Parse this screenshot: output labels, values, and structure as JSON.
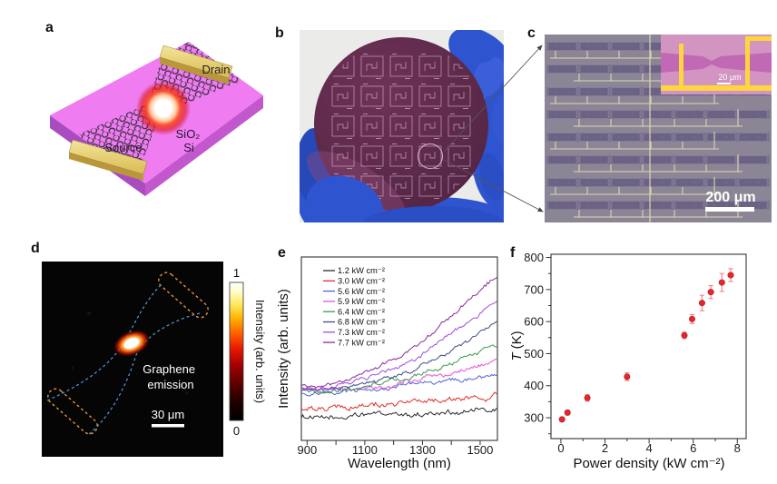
{
  "figure": {
    "panels": {
      "a": {
        "letter": "a",
        "type": "device-schematic",
        "labels": {
          "drain": "Drain",
          "source": "Source",
          "oxide": "SiO₂",
          "substrate": "Si"
        },
        "colors": {
          "substrate_pink": "#ef7cf1",
          "gold": "#e8d173",
          "glow_halo": "#ff2a00"
        }
      },
      "b": {
        "letter": "b",
        "type": "wafer-photograph",
        "colors": {
          "wafer": "#5d2a4a",
          "glove": "#2e54cf",
          "background": "#ebebe9"
        }
      },
      "c": {
        "letter": "c",
        "type": "optical-micrograph",
        "scale_bar": "200 μm",
        "inset": {
          "scale_bar": "20 μm"
        }
      },
      "d": {
        "letter": "d",
        "type": "emission-map",
        "annotation_lines": [
          "Graphene",
          "emission"
        ],
        "scale_bar": "30 μm",
        "colorbar": {
          "title": "Intensity (arb. units)",
          "tick_max": "1",
          "tick_min": "0"
        }
      },
      "e": {
        "letter": "e"
      },
      "f": {
        "letter": "f"
      }
    }
  },
  "chart_data": [
    {
      "panel": "e",
      "type": "line",
      "xlabel": "Wavelength (nm)",
      "ylabel": "Intensity (arb. units)",
      "xlim": [
        880,
        1560
      ],
      "ylim": [
        0,
        1
      ],
      "xticks": [
        900,
        1100,
        1300,
        1500
      ],
      "grid": false,
      "legend_position": "top-left",
      "x": [
        880,
        948,
        1016,
        1084,
        1152,
        1220,
        1288,
        1356,
        1424,
        1492,
        1560
      ],
      "series": [
        {
          "name": "1.2 kW cm⁻²",
          "color": "#2b2b2b",
          "noise": 0.018,
          "values": [
            0.13,
            0.12,
            0.125,
            0.13,
            0.135,
            0.14,
            0.145,
            0.15,
            0.15,
            0.155,
            0.16
          ]
        },
        {
          "name": "3.0 kW cm⁻²",
          "color": "#e03027",
          "noise": 0.02,
          "values": [
            0.18,
            0.175,
            0.175,
            0.18,
            0.19,
            0.2,
            0.21,
            0.215,
            0.22,
            0.23,
            0.245
          ]
        },
        {
          "name": "5.6 kW cm⁻²",
          "color": "#4f63d2",
          "noise": 0.015,
          "values": [
            0.26,
            0.255,
            0.26,
            0.27,
            0.28,
            0.29,
            0.3,
            0.315,
            0.33,
            0.34,
            0.355
          ]
        },
        {
          "name": "5.9 kW cm⁻²",
          "color": "#ea4fd8",
          "noise": 0.016,
          "values": [
            0.27,
            0.265,
            0.27,
            0.285,
            0.3,
            0.31,
            0.325,
            0.35,
            0.38,
            0.41,
            0.44
          ]
        },
        {
          "name": "6.4 kW cm⁻²",
          "color": "#3c9a4c",
          "noise": 0.014,
          "values": [
            0.275,
            0.27,
            0.28,
            0.295,
            0.31,
            0.33,
            0.36,
            0.4,
            0.44,
            0.48,
            0.53
          ]
        },
        {
          "name": "6.8 kW cm⁻²",
          "color": "#3d4a8e",
          "noise": 0.013,
          "values": [
            0.28,
            0.275,
            0.285,
            0.305,
            0.33,
            0.36,
            0.4,
            0.45,
            0.51,
            0.58,
            0.65
          ]
        },
        {
          "name": "7.3 kW cm⁻²",
          "color": "#9b4fe0",
          "noise": 0.013,
          "values": [
            0.29,
            0.285,
            0.3,
            0.325,
            0.36,
            0.4,
            0.46,
            0.53,
            0.6,
            0.68,
            0.76
          ]
        },
        {
          "name": "7.7 kW cm⁻²",
          "color": "#8e2b9b",
          "noise": 0.013,
          "values": [
            0.3,
            0.295,
            0.315,
            0.35,
            0.4,
            0.46,
            0.53,
            0.62,
            0.71,
            0.81,
            0.9
          ]
        }
      ]
    },
    {
      "panel": "f",
      "type": "scatter",
      "xlabel": "Power density (kW cm⁻²)",
      "ylabel_symbol": "T",
      "ylabel_units": " (K)",
      "xlim": [
        -0.45,
        8.4
      ],
      "ylim": [
        235,
        810
      ],
      "xticks": [
        0,
        2,
        4,
        6,
        8
      ],
      "yticks": [
        300,
        400,
        500,
        600,
        700,
        800
      ],
      "marker_color": "#e2282c",
      "errorbar_color": "#f28080",
      "points": [
        {
          "x": 0.05,
          "y": 295,
          "err": 6
        },
        {
          "x": 0.3,
          "y": 316,
          "err": 7
        },
        {
          "x": 1.2,
          "y": 362,
          "err": 10
        },
        {
          "x": 3.0,
          "y": 428,
          "err": 12
        },
        {
          "x": 5.6,
          "y": 557,
          "err": 10
        },
        {
          "x": 5.95,
          "y": 608,
          "err": 14
        },
        {
          "x": 6.4,
          "y": 658,
          "err": 24
        },
        {
          "x": 6.8,
          "y": 692,
          "err": 20
        },
        {
          "x": 7.3,
          "y": 722,
          "err": 28
        },
        {
          "x": 7.7,
          "y": 745,
          "err": 20
        }
      ]
    }
  ]
}
